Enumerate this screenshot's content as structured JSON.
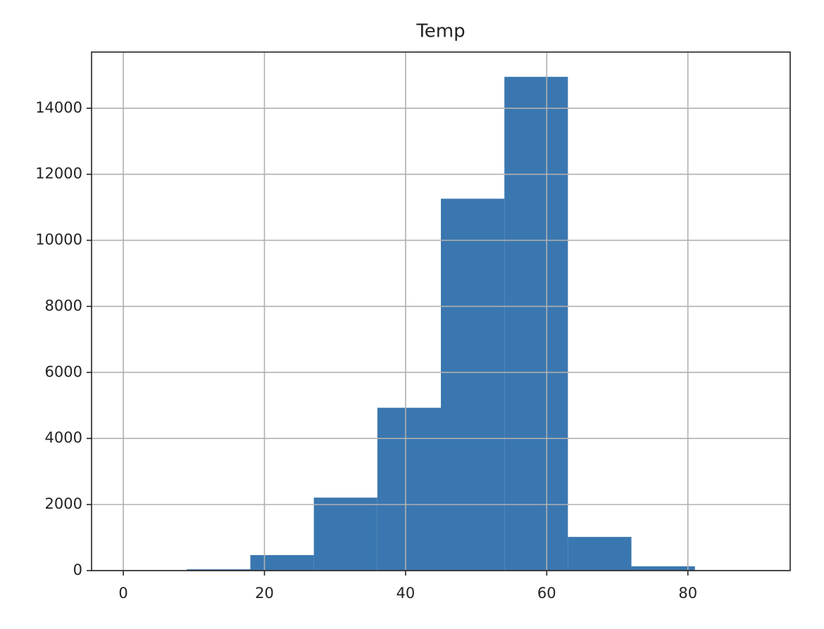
{
  "chart_data": {
    "type": "histogram",
    "title": "Temp",
    "bins": [
      0,
      9,
      18,
      27,
      36,
      45,
      54,
      63,
      72,
      81,
      90
    ],
    "values": [
      5,
      40,
      470,
      2210,
      4930,
      11260,
      14950,
      1020,
      130,
      0
    ],
    "color": "#3a77b0",
    "xlim": [
      -4.5,
      94.5
    ],
    "xticks": [
      0,
      20,
      40,
      60,
      80
    ],
    "ylim": [
      0,
      15700
    ],
    "yticks": [
      0,
      2000,
      4000,
      6000,
      8000,
      10000,
      12000,
      14000
    ],
    "grid": true
  }
}
